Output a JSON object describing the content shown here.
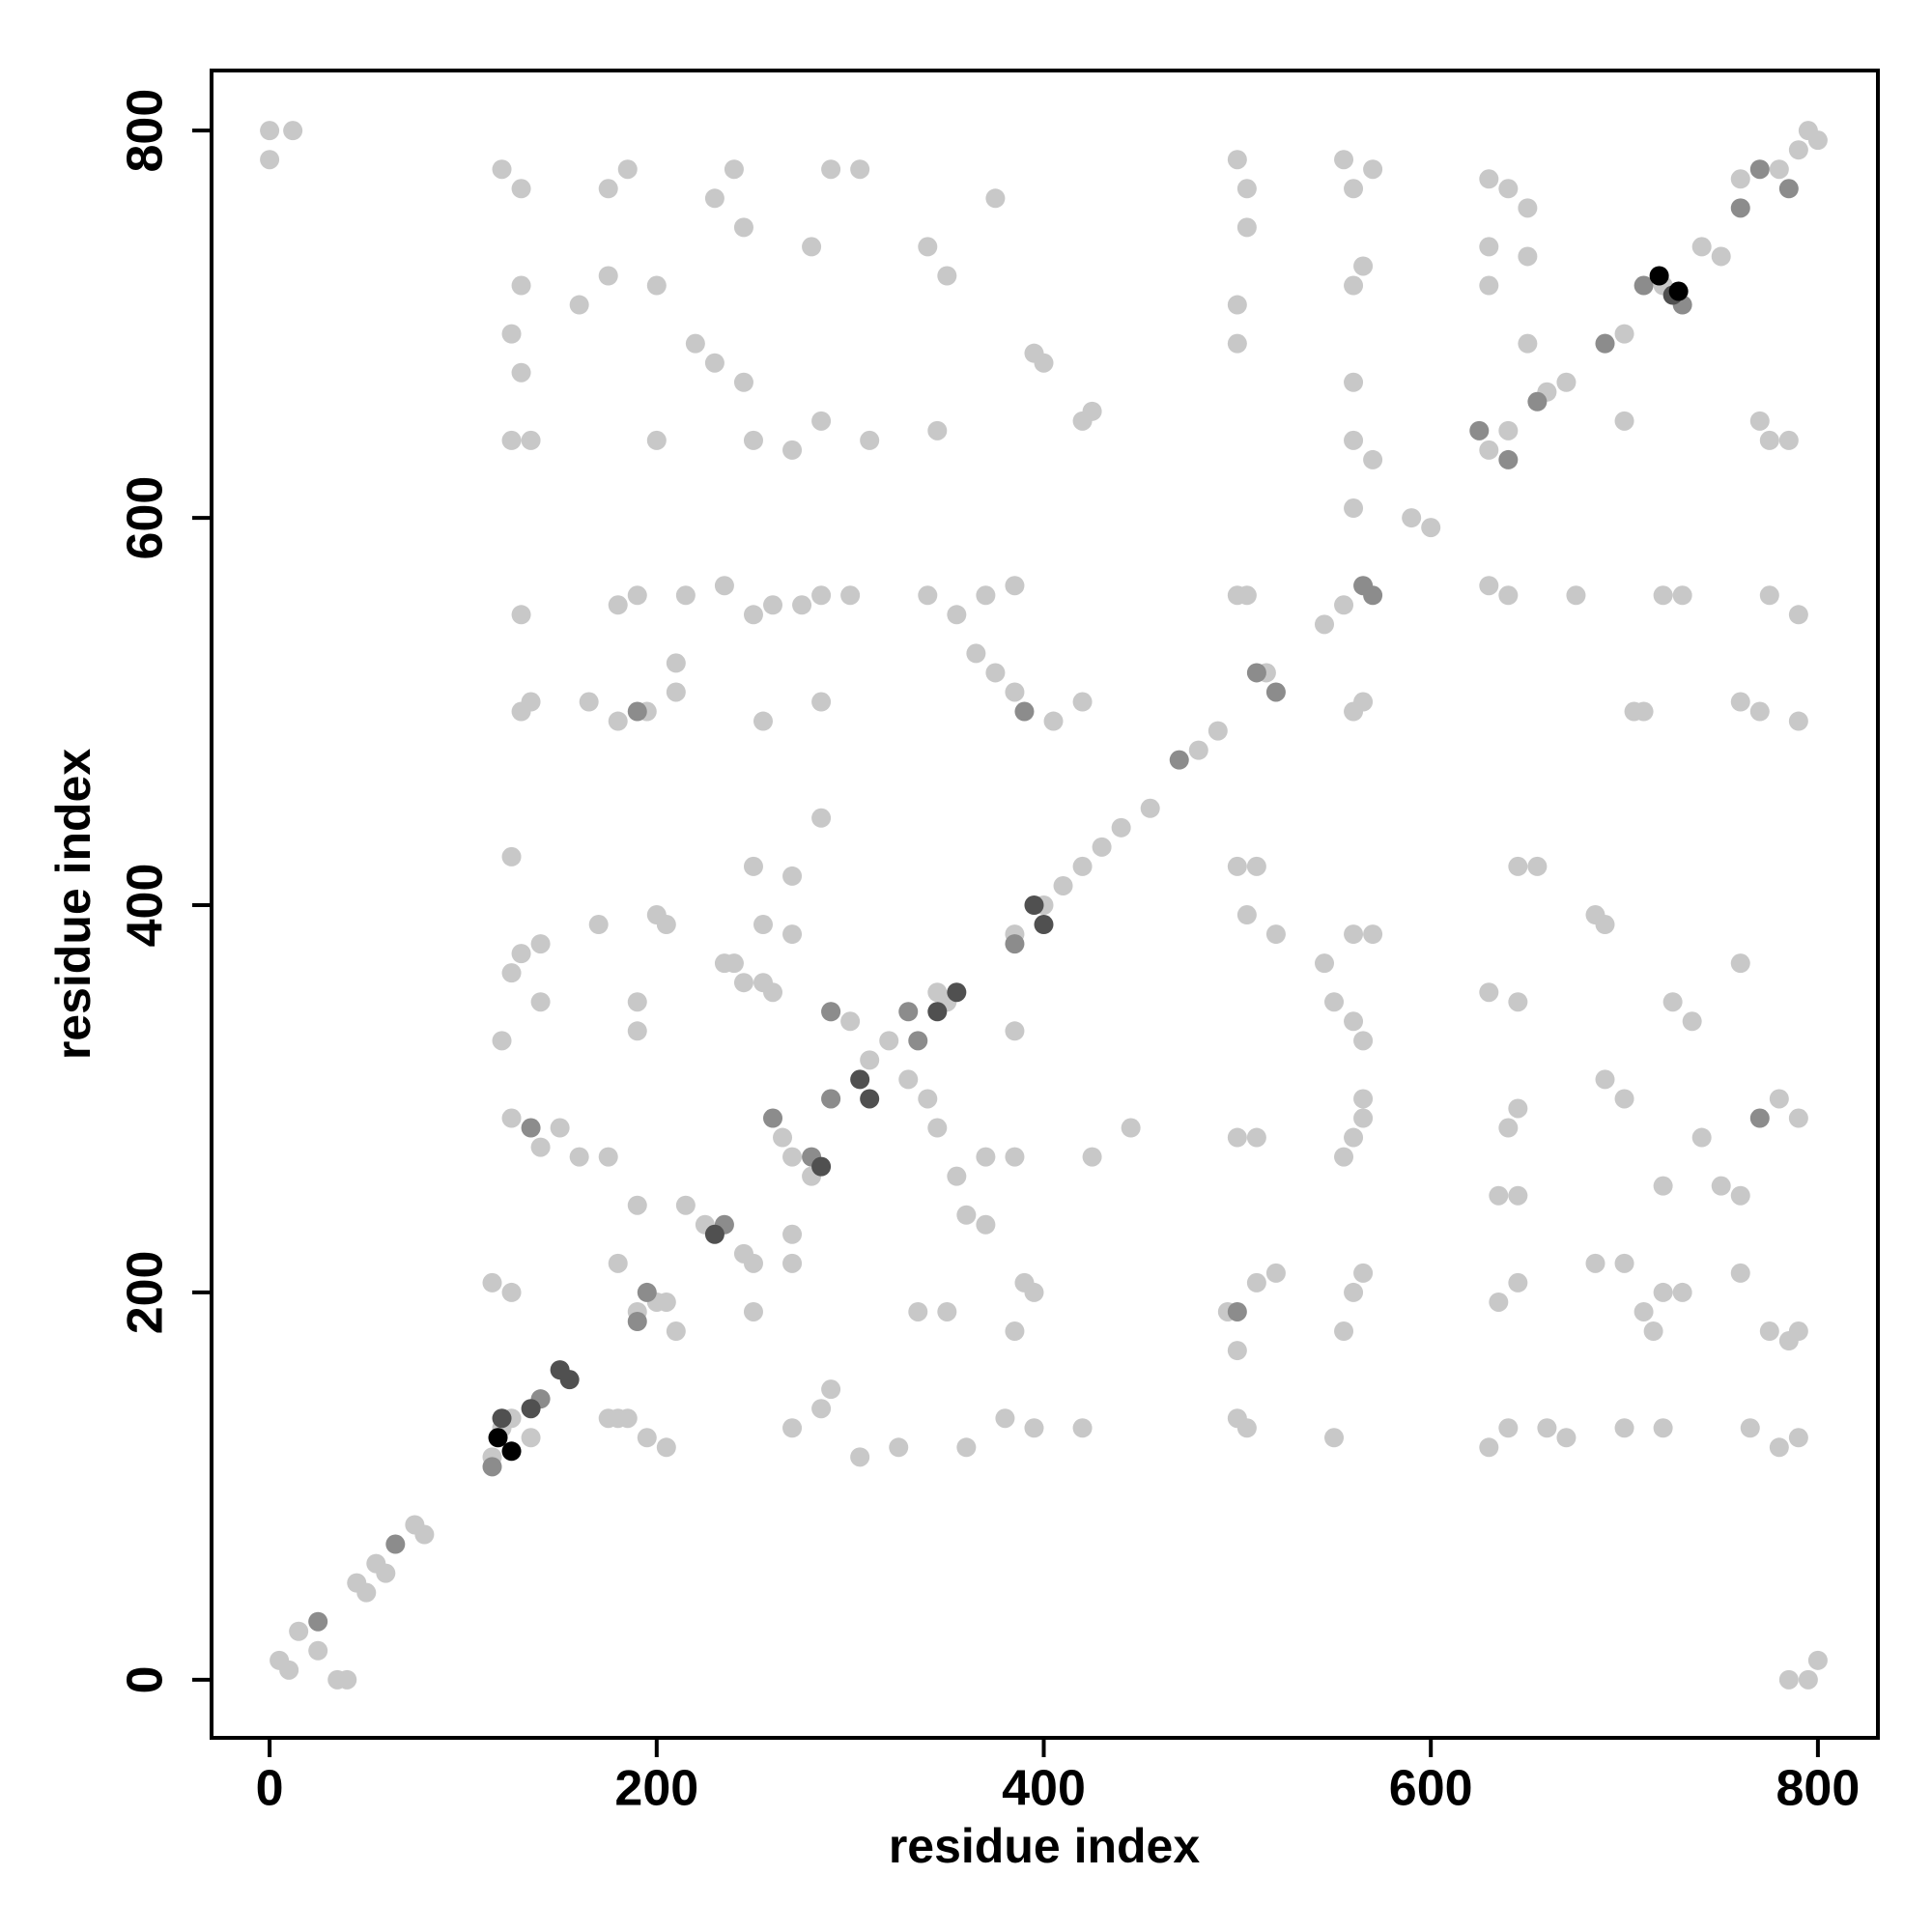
{
  "chart_data": {
    "type": "scatter",
    "x_label": "residue index",
    "y_label": "residue index",
    "xlim": [
      -30,
      831
    ],
    "ylim": [
      -30,
      831
    ],
    "xticks": [
      0,
      200,
      400,
      600,
      800
    ],
    "yticks": [
      0,
      200,
      400,
      600,
      800
    ],
    "series": [
      {
        "color": "#c8c8c8",
        "x": [
          5,
          10,
          15,
          25,
          35,
          40,
          45,
          50,
          55,
          60,
          75,
          80,
          115,
          125,
          135,
          180,
          190,
          200,
          215,
          225,
          245,
          250,
          265,
          270,
          280,
          290,
          310,
          320,
          330,
          340,
          345,
          355,
          360,
          370,
          350,
          345,
          300,
          290,
          255,
          240,
          385,
          400,
          410,
          420,
          430,
          440,
          455,
          480,
          490,
          515,
          545,
          555,
          590,
          600,
          630,
          640,
          660,
          670,
          690,
          700,
          720,
          740,
          750,
          760,
          780,
          790,
          800,
          795,
          0,
          0,
          12,
          120,
          130,
          185,
          175,
          230,
          240,
          245,
          280,
          290,
          305,
          340,
          350,
          375,
          130,
          160,
          175,
          200,
          125,
          220,
          230,
          245,
          130,
          125,
          135,
          200,
          250,
          270,
          285,
          310,
          345,
          395,
          400,
          420,
          425,
          500,
          505,
          505,
          500,
          500,
          555,
          560,
          570,
          560,
          565,
          560,
          560,
          570,
          560,
          630,
          640,
          650,
          650,
          630,
          630,
          650,
          700,
          770,
          775,
          785,
          130,
          180,
          190,
          215,
          235,
          250,
          260,
          275,
          285,
          300,
          340,
          355,
          370,
          385,
          500,
          505,
          630,
          640,
          675,
          720,
          730,
          775,
          790,
          130,
          135,
          165,
          180,
          195,
          210,
          210,
          255,
          285,
          365,
          375,
          385,
          405,
          420,
          560,
          565,
          705,
          710,
          760,
          770,
          790,
          125,
          250,
          270,
          285,
          255,
          270,
          500,
          510,
          505,
          520,
          545,
          560,
          570,
          645,
          655,
          685,
          690,
          170,
          200,
          205,
          130,
          140,
          125,
          235,
          245,
          260,
          550,
          560,
          565,
          630,
          645,
          725,
          735,
          760,
          120,
          140,
          190,
          190,
          385,
          125,
          150,
          160,
          175,
          140,
          370,
          385,
          425,
          445,
          500,
          510,
          555,
          565,
          565,
          560,
          645,
          640,
          700,
          720,
          740,
          750,
          760,
          790,
          780,
          635,
          645,
          690,
          115,
          125,
          180,
          190,
          205,
          210,
          250,
          270,
          270,
          335,
          350,
          390,
          385,
          395,
          495,
          500,
          510,
          520,
          555,
          560,
          565,
          635,
          645,
          685,
          700,
          710,
          715,
          720,
          730,
          760,
          775,
          785,
          790,
          120,
          175,
          185,
          195,
          205,
          270,
          285,
          290,
          305,
          325,
          360,
          380,
          395,
          420,
          500,
          505,
          550,
          630,
          640,
          660,
          670,
          700,
          720,
          765,
          780,
          790,
          785,
          795,
          800
        ],
        "y": [
          10,
          5,
          25,
          15,
          0,
          0,
          50,
          45,
          60,
          55,
          80,
          75,
          115,
          135,
          125,
          135,
          190,
          195,
          245,
          235,
          220,
          215,
          280,
          270,
          260,
          300,
          320,
          330,
          310,
          300,
          285,
          260,
          240,
          235,
          350,
          355,
          340,
          345,
          360,
          370,
          385,
          400,
          410,
          420,
          430,
          440,
          450,
          480,
          490,
          520,
          545,
          555,
          600,
          595,
          635,
          645,
          665,
          670,
          690,
          695,
          720,
          740,
          735,
          775,
          780,
          790,
          795,
          800,
          800,
          785,
          800,
          780,
          770,
          780,
          770,
          765,
          780,
          750,
          740,
          780,
          780,
          740,
          725,
          765,
          720,
          710,
          725,
          720,
          695,
          690,
          680,
          670,
          675,
          640,
          640,
          640,
          640,
          635,
          650,
          640,
          645,
          685,
          680,
          650,
          655,
          785,
          770,
          750,
          710,
          690,
          785,
          770,
          780,
          720,
          730,
          670,
          640,
          630,
          605,
          775,
          770,
          760,
          735,
          740,
          720,
          690,
          650,
          650,
          640,
          640,
          550,
          555,
          560,
          560,
          565,
          550,
          555,
          555,
          560,
          560,
          560,
          550,
          560,
          565,
          560,
          560,
          565,
          560,
          560,
          560,
          560,
          560,
          550,
          500,
          505,
          505,
          495,
          500,
          525,
          510,
          495,
          505,
          530,
          520,
          510,
          495,
          505,
          500,
          505,
          500,
          500,
          505,
          500,
          495,
          425,
          420,
          415,
          445,
          390,
          385,
          420,
          420,
          395,
          385,
          370,
          385,
          385,
          420,
          420,
          395,
          390,
          390,
          395,
          390,
          375,
          380,
          365,
          370,
          360,
          355,
          350,
          340,
          330,
          355,
          350,
          350,
          340,
          370,
          330,
          350,
          350,
          335,
          335,
          290,
          285,
          270,
          270,
          275,
          270,
          270,
          270,
          285,
          280,
          280,
          270,
          290,
          300,
          280,
          295,
          285,
          300,
          255,
          280,
          255,
          250,
          290,
          300,
          250,
          250,
          310,
          205,
          200,
          215,
          245,
          195,
          180,
          190,
          230,
          215,
          190,
          190,
          205,
          180,
          200,
          190,
          170,
          205,
          210,
          180,
          200,
          210,
          195,
          205,
          215,
          215,
          190,
          180,
          200,
          200,
          210,
          180,
          175,
          180,
          130,
          135,
          135,
          125,
          120,
          130,
          140,
          150,
          115,
          120,
          120,
          135,
          130,
          130,
          135,
          130,
          125,
          120,
          130,
          130,
          125,
          130,
          130,
          130,
          120,
          125,
          0,
          0,
          10
        ]
      },
      {
        "color": "#8c8c8c",
        "x": [
          25,
          65,
          115,
          140,
          190,
          195,
          235,
          260,
          280,
          290,
          330,
          335,
          385,
          470,
          510,
          520,
          565,
          570,
          625,
          640,
          655,
          690,
          710,
          730,
          760,
          770,
          785,
          390,
          190,
          770,
          500,
          135,
          290
        ],
        "y": [
          30,
          70,
          110,
          145,
          185,
          200,
          235,
          290,
          270,
          300,
          345,
          330,
          380,
          475,
          520,
          510,
          565,
          560,
          645,
          630,
          660,
          690,
          720,
          710,
          760,
          780,
          770,
          500,
          500,
          290,
          190,
          285,
          345
        ]
      },
      {
        "color": "#505050",
        "x": [
          120,
          135,
          150,
          155,
          230,
          285,
          345,
          355,
          395,
          400,
          725,
          305,
          310
        ],
        "y": [
          135,
          140,
          160,
          155,
          230,
          265,
          345,
          355,
          400,
          390,
          715,
          310,
          300
        ]
      },
      {
        "color": "#000000",
        "x": [
          118,
          125,
          718,
          728
        ],
        "y": [
          125,
          118,
          725,
          717
        ]
      }
    ]
  }
}
